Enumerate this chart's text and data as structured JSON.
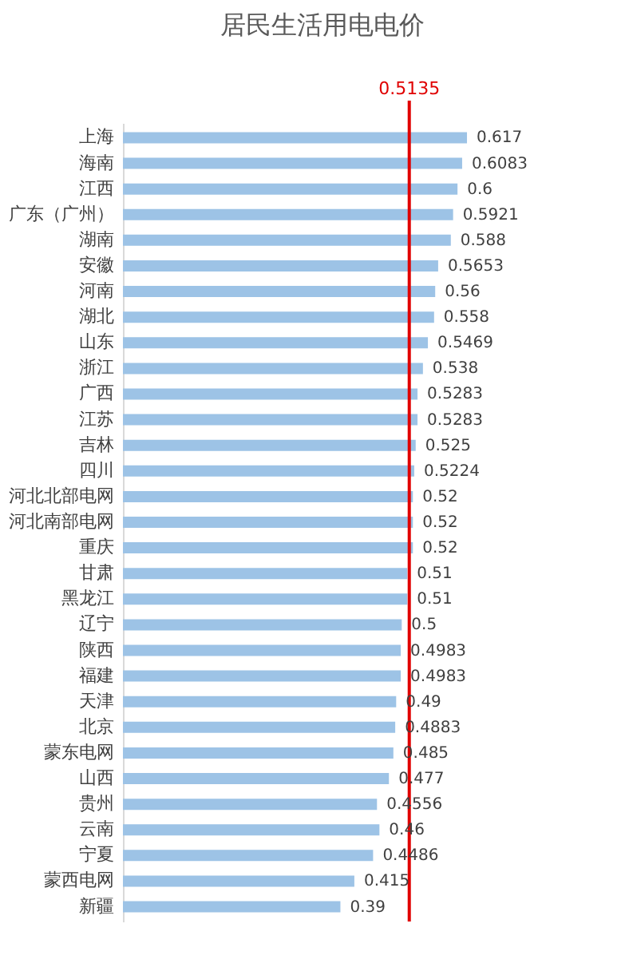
{
  "chart_data": {
    "type": "bar",
    "orientation": "horizontal",
    "title": "居民生活用电电价",
    "categories": [
      "上海",
      "海南",
      "江西",
      "广东（广州）",
      "湖南",
      "安徽",
      "河南",
      "湖北",
      "山东",
      "浙江",
      "广西",
      "江苏",
      "吉林",
      "四川",
      "河北北部电网",
      "河北南部电网",
      "重庆",
      "甘肃",
      "黑龙江",
      "辽宁",
      "陕西",
      "福建",
      "天津",
      "北京",
      "蒙东电网",
      "山西",
      "贵州",
      "云南",
      "宁夏",
      "蒙西电网",
      "新疆"
    ],
    "values": [
      0.617,
      0.6083,
      0.6,
      0.5921,
      0.588,
      0.5653,
      0.56,
      0.558,
      0.5469,
      0.538,
      0.5283,
      0.5283,
      0.525,
      0.5224,
      0.52,
      0.52,
      0.52,
      0.51,
      0.51,
      0.5,
      0.4983,
      0.4983,
      0.49,
      0.4883,
      0.485,
      0.477,
      0.4556,
      0.46,
      0.4486,
      0.415,
      0.39
    ],
    "color": "#9dc3e6",
    "data_labels": true,
    "grid": false,
    "ref_lines": [
      {
        "axis": "x",
        "value": 0.5135,
        "label": "0.5135",
        "color": "#e00000"
      }
    ]
  }
}
